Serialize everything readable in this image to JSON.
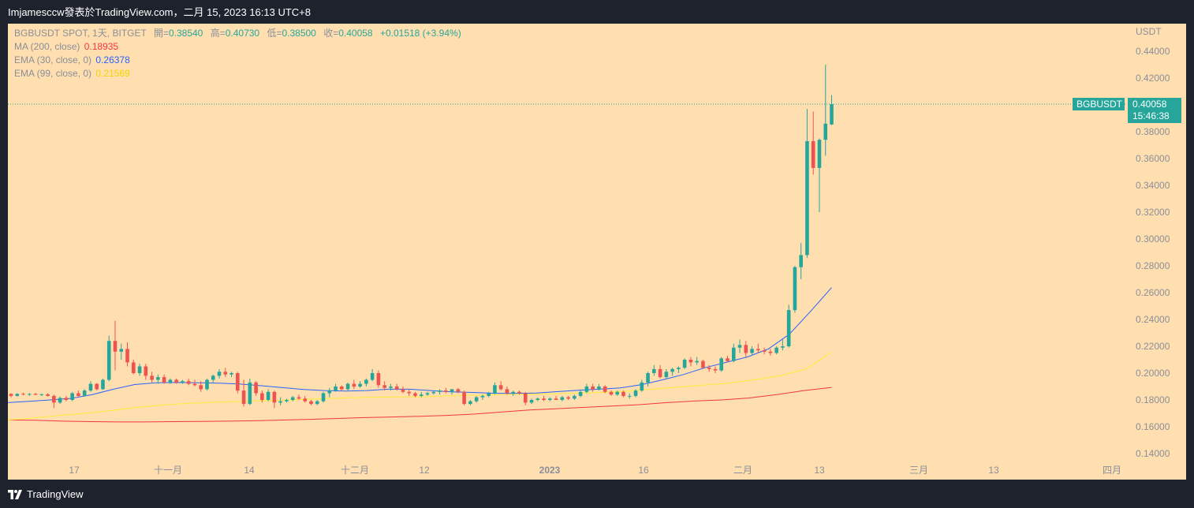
{
  "header": {
    "title": "Imjamesccw發表於TradingView.com，二月 15, 2023 16:13 UTC+8"
  },
  "footer": {
    "brand": "TradingView"
  },
  "legend": {
    "symbol_line": "BGBUSDT SPOT, 1天, BITGET",
    "open_label": "開=",
    "open_value": "0.38540",
    "high_label": "高=",
    "high_value": "0.40730",
    "low_label": "低=",
    "low_value": "0.38500",
    "close_label": "收=",
    "close_value": "0.40058",
    "change": "+0.01518 (+3.94%)",
    "ma200_label": "MA (200, close)",
    "ma200_value": "0.18935",
    "ema30_label": "EMA (30, close, 0)",
    "ema30_value": "0.26378",
    "ema99_label": "EMA (99, close, 0)",
    "ema99_value": "0.21569"
  },
  "colors": {
    "background": "#ffdfb0",
    "up": "#26a69a",
    "down": "#ef5350",
    "ma200": "#f23645",
    "ema30": "#2962ff",
    "ema99": "#ffeb3b",
    "axis_text": "#8a8e99"
  },
  "chart_data": {
    "type": "candlestick",
    "title": "BGBUSDT SPOT, 1天, BITGET",
    "ylabel": "USDT",
    "ylim": [
      0.13,
      0.45
    ],
    "y_ticks": [
      "0.44000",
      "0.42000",
      "0.40000",
      "0.38000",
      "0.36000",
      "0.34000",
      "0.32000",
      "0.30000",
      "0.28000",
      "0.26000",
      "0.24000",
      "0.22000",
      "0.20000",
      "0.18000",
      "0.16000",
      "0.14000"
    ],
    "x_ticks": [
      "17",
      "十一月",
      "14",
      "十二月",
      "12",
      "2023",
      "16",
      "二月",
      "13",
      "三月",
      "13",
      "四月"
    ],
    "price_label": {
      "symbol": "BGBUSDT",
      "price": "0.40058",
      "countdown": "15:46:38",
      "value": 0.40058
    },
    "candles_ohlc": [
      [
        0.1845,
        0.185,
        0.182,
        0.183
      ],
      [
        0.183,
        0.185,
        0.1825,
        0.1845
      ],
      [
        0.1845,
        0.1855,
        0.1835,
        0.184
      ],
      [
        0.184,
        0.185,
        0.183,
        0.1845
      ],
      [
        0.1845,
        0.1852,
        0.1835,
        0.1838
      ],
      [
        0.1838,
        0.1848,
        0.183,
        0.1842
      ],
      [
        0.1842,
        0.185,
        0.1825,
        0.183
      ],
      [
        0.183,
        0.184,
        0.174,
        0.178
      ],
      [
        0.178,
        0.1825,
        0.177,
        0.1815
      ],
      [
        0.1815,
        0.183,
        0.179,
        0.18
      ],
      [
        0.18,
        0.186,
        0.179,
        0.185
      ],
      [
        0.185,
        0.187,
        0.182,
        0.183
      ],
      [
        0.183,
        0.188,
        0.1825,
        0.187
      ],
      [
        0.187,
        0.194,
        0.186,
        0.192
      ],
      [
        0.192,
        0.1925,
        0.187,
        0.188
      ],
      [
        0.188,
        0.196,
        0.1875,
        0.195
      ],
      [
        0.195,
        0.228,
        0.194,
        0.224
      ],
      [
        0.224,
        0.239,
        0.202,
        0.216
      ],
      [
        0.216,
        0.222,
        0.21,
        0.218
      ],
      [
        0.218,
        0.223,
        0.205,
        0.208
      ],
      [
        0.208,
        0.21,
        0.199,
        0.2
      ],
      [
        0.2,
        0.207,
        0.198,
        0.205
      ],
      [
        0.205,
        0.207,
        0.195,
        0.198
      ],
      [
        0.198,
        0.201,
        0.193,
        0.195
      ],
      [
        0.195,
        0.199,
        0.192,
        0.197
      ],
      [
        0.197,
        0.199,
        0.192,
        0.193
      ],
      [
        0.193,
        0.196,
        0.192,
        0.195
      ],
      [
        0.195,
        0.196,
        0.192,
        0.193
      ],
      [
        0.193,
        0.195,
        0.192,
        0.194
      ],
      [
        0.194,
        0.196,
        0.191,
        0.192
      ],
      [
        0.192,
        0.195,
        0.19,
        0.191
      ],
      [
        0.191,
        0.194,
        0.186,
        0.188
      ],
      [
        0.188,
        0.196,
        0.187,
        0.195
      ],
      [
        0.195,
        0.199,
        0.193,
        0.198
      ],
      [
        0.198,
        0.203,
        0.196,
        0.201
      ],
      [
        0.201,
        0.204,
        0.197,
        0.199
      ],
      [
        0.199,
        0.201,
        0.197,
        0.2
      ],
      [
        0.2,
        0.201,
        0.185,
        0.187
      ],
      [
        0.187,
        0.195,
        0.175,
        0.177
      ],
      [
        0.177,
        0.196,
        0.176,
        0.193
      ],
      [
        0.193,
        0.194,
        0.183,
        0.185
      ],
      [
        0.185,
        0.187,
        0.178,
        0.18
      ],
      [
        0.18,
        0.188,
        0.179,
        0.186
      ],
      [
        0.186,
        0.187,
        0.174,
        0.178
      ],
      [
        0.178,
        0.182,
        0.176,
        0.179
      ],
      [
        0.179,
        0.181,
        0.178,
        0.18
      ],
      [
        0.18,
        0.183,
        0.179,
        0.182
      ],
      [
        0.182,
        0.184,
        0.18,
        0.181
      ],
      [
        0.181,
        0.183,
        0.178,
        0.179
      ],
      [
        0.179,
        0.18,
        0.176,
        0.177
      ],
      [
        0.177,
        0.18,
        0.176,
        0.179
      ],
      [
        0.179,
        0.186,
        0.178,
        0.185
      ],
      [
        0.185,
        0.189,
        0.182,
        0.187
      ],
      [
        0.187,
        0.192,
        0.186,
        0.19
      ],
      [
        0.19,
        0.191,
        0.187,
        0.188
      ],
      [
        0.188,
        0.193,
        0.187,
        0.192
      ],
      [
        0.192,
        0.195,
        0.188,
        0.19
      ],
      [
        0.19,
        0.194,
        0.189,
        0.192
      ],
      [
        0.192,
        0.196,
        0.19,
        0.195
      ],
      [
        0.195,
        0.203,
        0.194,
        0.2
      ],
      [
        0.2,
        0.202,
        0.189,
        0.191
      ],
      [
        0.191,
        0.194,
        0.187,
        0.189
      ],
      [
        0.189,
        0.192,
        0.187,
        0.19
      ],
      [
        0.19,
        0.192,
        0.187,
        0.188
      ],
      [
        0.188,
        0.19,
        0.185,
        0.186
      ],
      [
        0.186,
        0.188,
        0.183,
        0.185
      ],
      [
        0.185,
        0.186,
        0.182,
        0.183
      ],
      [
        0.183,
        0.186,
        0.182,
        0.184
      ],
      [
        0.184,
        0.186,
        0.183,
        0.185
      ],
      [
        0.185,
        0.187,
        0.184,
        0.186
      ],
      [
        0.186,
        0.188,
        0.184,
        0.187
      ],
      [
        0.187,
        0.189,
        0.185,
        0.186
      ],
      [
        0.186,
        0.188,
        0.184,
        0.188
      ],
      [
        0.188,
        0.189,
        0.185,
        0.186
      ],
      [
        0.186,
        0.187,
        0.176,
        0.177
      ],
      [
        0.177,
        0.18,
        0.176,
        0.179
      ],
      [
        0.179,
        0.183,
        0.178,
        0.182
      ],
      [
        0.182,
        0.184,
        0.18,
        0.183
      ],
      [
        0.183,
        0.186,
        0.182,
        0.185
      ],
      [
        0.185,
        0.193,
        0.184,
        0.191
      ],
      [
        0.191,
        0.194,
        0.187,
        0.188
      ],
      [
        0.188,
        0.19,
        0.184,
        0.185
      ],
      [
        0.185,
        0.187,
        0.183,
        0.186
      ],
      [
        0.186,
        0.187,
        0.184,
        0.185
      ],
      [
        0.185,
        0.186,
        0.176,
        0.178
      ],
      [
        0.178,
        0.181,
        0.177,
        0.18
      ],
      [
        0.18,
        0.182,
        0.179,
        0.181
      ],
      [
        0.181,
        0.183,
        0.179,
        0.18
      ],
      [
        0.18,
        0.182,
        0.179,
        0.181
      ],
      [
        0.181,
        0.183,
        0.18,
        0.18
      ],
      [
        0.18,
        0.183,
        0.179,
        0.182
      ],
      [
        0.182,
        0.183,
        0.18,
        0.181
      ],
      [
        0.181,
        0.184,
        0.18,
        0.183
      ],
      [
        0.183,
        0.187,
        0.182,
        0.186
      ],
      [
        0.186,
        0.192,
        0.185,
        0.19
      ],
      [
        0.19,
        0.192,
        0.186,
        0.188
      ],
      [
        0.188,
        0.192,
        0.187,
        0.19
      ],
      [
        0.19,
        0.191,
        0.185,
        0.186
      ],
      [
        0.186,
        0.187,
        0.183,
        0.184
      ],
      [
        0.184,
        0.187,
        0.183,
        0.186
      ],
      [
        0.186,
        0.187,
        0.182,
        0.183
      ],
      [
        0.183,
        0.185,
        0.181,
        0.183
      ],
      [
        0.183,
        0.188,
        0.182,
        0.187
      ],
      [
        0.187,
        0.195,
        0.186,
        0.193
      ],
      [
        0.193,
        0.201,
        0.19,
        0.2
      ],
      [
        0.2,
        0.206,
        0.198,
        0.203
      ],
      [
        0.203,
        0.206,
        0.196,
        0.197
      ],
      [
        0.197,
        0.203,
        0.196,
        0.201
      ],
      [
        0.201,
        0.204,
        0.198,
        0.203
      ],
      [
        0.203,
        0.205,
        0.2,
        0.204
      ],
      [
        0.204,
        0.211,
        0.203,
        0.21
      ],
      [
        0.21,
        0.212,
        0.205,
        0.208
      ],
      [
        0.208,
        0.212,
        0.206,
        0.209
      ],
      [
        0.209,
        0.21,
        0.203,
        0.204
      ],
      [
        0.204,
        0.206,
        0.201,
        0.203
      ],
      [
        0.203,
        0.205,
        0.2,
        0.202
      ],
      [
        0.202,
        0.212,
        0.201,
        0.211
      ],
      [
        0.211,
        0.213,
        0.208,
        0.209
      ],
      [
        0.209,
        0.222,
        0.208,
        0.219
      ],
      [
        0.219,
        0.225,
        0.215,
        0.221
      ],
      [
        0.221,
        0.224,
        0.212,
        0.215
      ],
      [
        0.215,
        0.22,
        0.214,
        0.218
      ],
      [
        0.218,
        0.222,
        0.215,
        0.217
      ],
      [
        0.217,
        0.219,
        0.214,
        0.216
      ],
      [
        0.216,
        0.218,
        0.213,
        0.215
      ],
      [
        0.215,
        0.22,
        0.214,
        0.219
      ],
      [
        0.219,
        0.225,
        0.217,
        0.22
      ],
      [
        0.22,
        0.251,
        0.219,
        0.247
      ],
      [
        0.247,
        0.28,
        0.245,
        0.279
      ],
      [
        0.279,
        0.297,
        0.27,
        0.288
      ],
      [
        0.288,
        0.397,
        0.286,
        0.373
      ],
      [
        0.373,
        0.395,
        0.348,
        0.353
      ],
      [
        0.353,
        0.375,
        0.32,
        0.374
      ],
      [
        0.374,
        0.43,
        0.362,
        0.386
      ],
      [
        0.3854,
        0.4073,
        0.385,
        0.40058
      ]
    ],
    "series": [
      {
        "name": "MA (200, close)",
        "last": 0.18935,
        "values": [
          0.165,
          0.1648,
          0.1642,
          0.1638,
          0.1636,
          0.1636,
          0.1638,
          0.164,
          0.1642,
          0.1645,
          0.165,
          0.1655,
          0.1662,
          0.1668,
          0.1673,
          0.1678,
          0.1685,
          0.1695,
          0.171,
          0.1725,
          0.1735,
          0.1745,
          0.1755,
          0.1765,
          0.178,
          0.1792,
          0.18,
          0.1815,
          0.184,
          0.187,
          0.18935
        ]
      },
      {
        "name": "EMA (30, close, 0)",
        "last": 0.26378,
        "values": [
          0.178,
          0.179,
          0.18,
          0.1812,
          0.184,
          0.188,
          0.1915,
          0.1928,
          0.193,
          0.1928,
          0.1925,
          0.1918,
          0.1906,
          0.1892,
          0.1878,
          0.187,
          0.1866,
          0.187,
          0.188,
          0.188,
          0.187,
          0.186,
          0.1856,
          0.185,
          0.1848,
          0.1852,
          0.1862,
          0.1872,
          0.188,
          0.189,
          0.1914,
          0.195,
          0.199,
          0.204,
          0.208,
          0.212,
          0.218,
          0.229,
          0.246,
          0.26378
        ]
      },
      {
        "name": "EMA (99, close, 0)",
        "last": 0.21569,
        "values": [
          0.165,
          0.1665,
          0.1685,
          0.17,
          0.172,
          0.1745,
          0.1762,
          0.1775,
          0.1783,
          0.1788,
          0.1795,
          0.18,
          0.1808,
          0.1815,
          0.182,
          0.1822,
          0.1822,
          0.183,
          0.1835,
          0.184,
          0.1843,
          0.1845,
          0.185,
          0.1856,
          0.1865,
          0.188,
          0.1895,
          0.191,
          0.1925,
          0.195,
          0.198,
          0.203,
          0.21569
        ]
      }
    ]
  }
}
